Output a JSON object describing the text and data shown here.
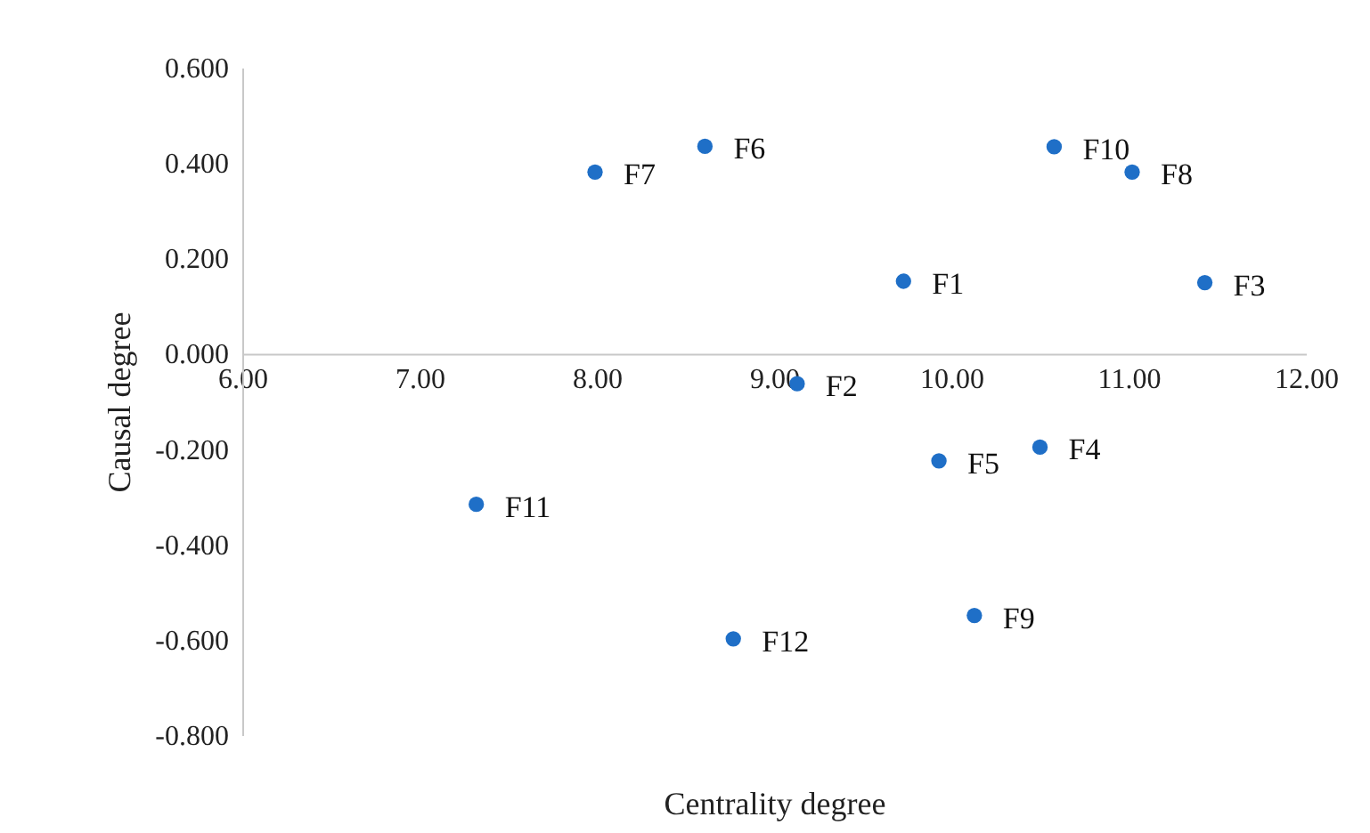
{
  "chart_data": {
    "type": "scatter",
    "xlabel": "Centrality degree",
    "ylabel": "Causal degree",
    "x": [
      9.73,
      9.13,
      11.43,
      10.5,
      9.93,
      8.61,
      7.99,
      11.02,
      10.13,
      10.58,
      7.32,
      8.77
    ],
    "series": [
      {
        "color": "#1f6fc7",
        "values": [
          0.152,
          -0.063,
          0.149,
          -0.196,
          -0.225,
          0.435,
          0.381,
          0.381,
          -0.549,
          0.434,
          -0.316,
          -0.598
        ]
      }
    ],
    "annotations": [
      {
        "text": "F1",
        "x": 9.73,
        "y": 0.152
      },
      {
        "text": "F2",
        "x": 9.13,
        "y": -0.063
      },
      {
        "text": "F3",
        "x": 11.43,
        "y": 0.149
      },
      {
        "text": "F4",
        "x": 10.5,
        "y": -0.196
      },
      {
        "text": "F5",
        "x": 9.93,
        "y": -0.225
      },
      {
        "text": "F6",
        "x": 8.61,
        "y": 0.435
      },
      {
        "text": "F7",
        "x": 7.99,
        "y": 0.381
      },
      {
        "text": "F8",
        "x": 11.02,
        "y": 0.381
      },
      {
        "text": "F9",
        "x": 10.13,
        "y": -0.549
      },
      {
        "text": "F10",
        "x": 10.58,
        "y": 0.434
      },
      {
        "text": "F11",
        "x": 7.32,
        "y": -0.316
      },
      {
        "text": "F12",
        "x": 8.77,
        "y": -0.598
      }
    ],
    "xlim": [
      6,
      12
    ],
    "ylim": [
      -0.8,
      0.6
    ],
    "xticks": [
      {
        "value": 6,
        "label": "6.00"
      },
      {
        "value": 7,
        "label": "7.00"
      },
      {
        "value": 8,
        "label": "8.00"
      },
      {
        "value": 9,
        "label": "9.00"
      },
      {
        "value": 10,
        "label": "10.00"
      },
      {
        "value": 11,
        "label": "11.00"
      },
      {
        "value": 12,
        "label": "12.00"
      }
    ],
    "yticks": [
      {
        "value": -0.8,
        "label": "-0.800"
      },
      {
        "value": -0.6,
        "label": "-0.600"
      },
      {
        "value": -0.4,
        "label": "-0.400"
      },
      {
        "value": -0.2,
        "label": "-0.200"
      },
      {
        "value": 0,
        "label": "0.000"
      },
      {
        "value": 0.2,
        "label": "0.200"
      },
      {
        "value": 0.4,
        "label": "0.400"
      },
      {
        "value": 0.6,
        "label": "0.600"
      }
    ],
    "grid": false,
    "marker": "circle"
  }
}
